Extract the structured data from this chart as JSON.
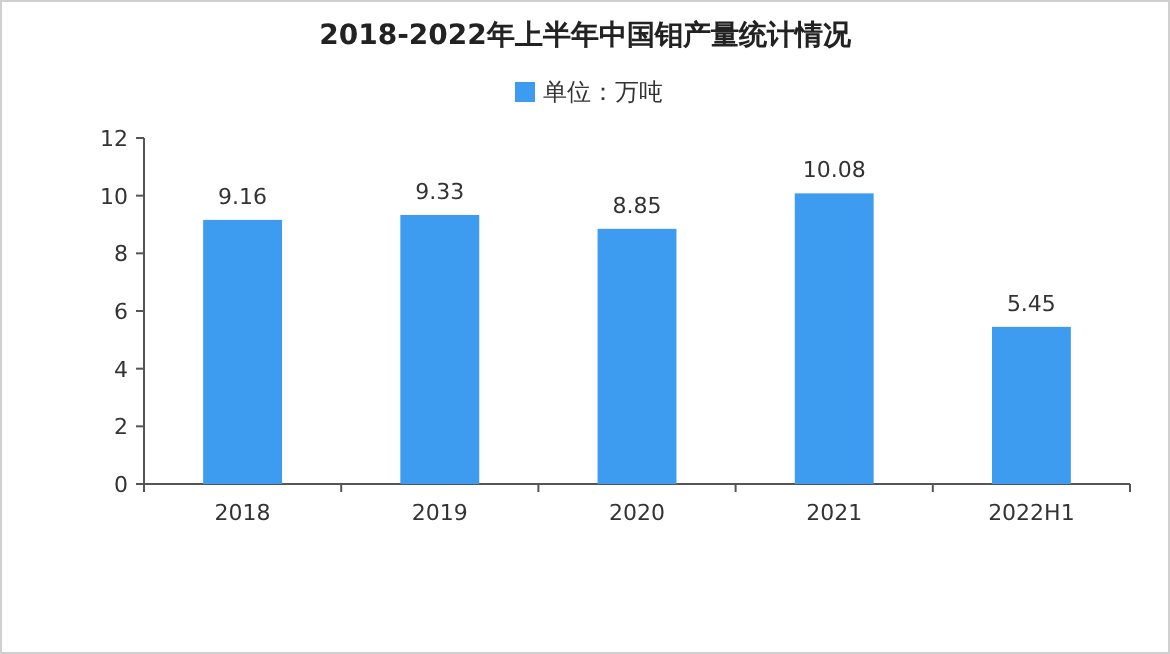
{
  "chart_data": {
    "type": "bar",
    "title": "2018-2022年上半年中国钼产量统计情况",
    "categories": [
      "2018",
      "2019",
      "2020",
      "2021",
      "2022H1"
    ],
    "series": [
      {
        "name": "单位：万吨",
        "color": "#3d9bf0",
        "values": [
          9.16,
          9.33,
          8.85,
          10.08,
          5.45
        ]
      }
    ],
    "ylim": [
      0,
      12
    ],
    "yticks": [
      0,
      2,
      4,
      6,
      8,
      10,
      12
    ],
    "data_labels": true,
    "legend": "top",
    "grid": false
  }
}
